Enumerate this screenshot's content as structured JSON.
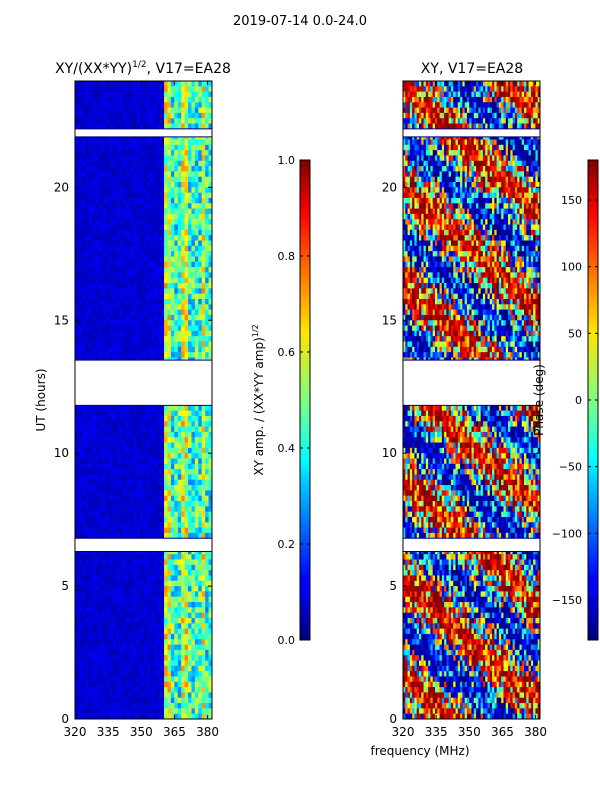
{
  "suptitle": "2019-07-14 0.0-24.0",
  "colors": {
    "axis": "#000000",
    "background": "#ffffff",
    "flag_gap": "#ffffff"
  },
  "chart_data": [
    {
      "type": "heatmap",
      "title": "XY/(XX*YY)^1/2, V17=EA28",
      "title_main": "XY/(XX*YY)",
      "title_exp": "1/2",
      "title_tail": ", V17=EA28",
      "xlabel": "",
      "ylabel": "UT (hours)",
      "xlim": [
        320,
        382
      ],
      "ylim": [
        0,
        24
      ],
      "xticks": [
        "320",
        "335",
        "350",
        "365",
        "380"
      ],
      "xtick_values": [
        320,
        335,
        350,
        365,
        380
      ],
      "yticks": [
        "0",
        "5",
        "10",
        "15",
        "20"
      ],
      "ytick_values": [
        0,
        5,
        10,
        15,
        20
      ],
      "colorbar": {
        "label_main": "XY amp. / (XX*YY amp)",
        "label_exp": "1/2",
        "range": [
          0.0,
          1.0
        ],
        "ticks": [
          "0.0",
          "0.2",
          "0.4",
          "0.6",
          "0.8",
          "1.0"
        ],
        "tick_values": [
          0.0,
          0.2,
          0.4,
          0.6,
          0.8,
          1.0
        ],
        "colormap": "jet"
      },
      "flagged_ut_ranges": [
        [
          11.8,
          13.5
        ],
        [
          6.3,
          6.8
        ],
        [
          21.9,
          22.2
        ]
      ],
      "active_band_mhz": [
        360,
        382
      ]
    },
    {
      "type": "heatmap",
      "title": "XY, V17=EA28",
      "xlabel": "frequency (MHz)",
      "ylabel": "",
      "xlim": [
        320,
        382
      ],
      "ylim": [
        0,
        24
      ],
      "xticks": [
        "320",
        "335",
        "350",
        "365",
        "380"
      ],
      "xtick_values": [
        320,
        335,
        350,
        365,
        380
      ],
      "yticks": [
        "0",
        "5",
        "10",
        "15",
        "20"
      ],
      "ytick_values": [
        0,
        5,
        10,
        15,
        20
      ],
      "colorbar": {
        "label": "Phase (deg)",
        "range": [
          -180,
          180
        ],
        "ticks": [
          "−150",
          "−100",
          "−50",
          "0",
          "50",
          "100",
          "150"
        ],
        "tick_values": [
          -150,
          -100,
          -50,
          0,
          50,
          100,
          150
        ],
        "colormap": "jet"
      },
      "flagged_ut_ranges": [
        [
          11.8,
          13.5
        ],
        [
          6.3,
          6.8
        ],
        [
          21.9,
          22.2
        ]
      ]
    }
  ]
}
